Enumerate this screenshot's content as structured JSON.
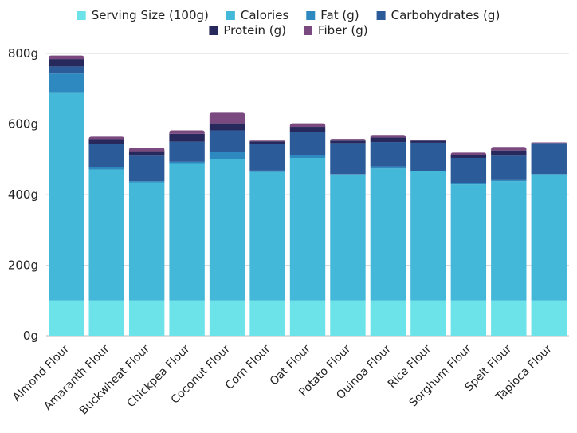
{
  "chart_data": {
    "type": "bar",
    "stacked": true,
    "categories": [
      "Almond Flour",
      "Amaranth Flour",
      "Buckwheat Flour",
      "Chickpea Flour",
      "Coconut Flour",
      "Corn Flour",
      "Oat Flour",
      "Potato Flour",
      "Quinoa Flour",
      "Rice Flour",
      "Sorghum Flour",
      "Spelt Flour",
      "Tapioca Flour"
    ],
    "series": [
      {
        "name": "Serving Size (100g)",
        "color": "#6be3e8",
        "values": [
          100,
          100,
          100,
          100,
          100,
          100,
          100,
          100,
          100,
          100,
          100,
          100,
          100
        ]
      },
      {
        "name": "Calories",
        "color": "#43b8d9",
        "values": [
          590,
          371,
          335,
          387,
          400,
          364,
          404,
          357,
          374,
          366,
          329,
          338,
          358
        ]
      },
      {
        "name": "Fat (g)",
        "color": "#2d89c0",
        "values": [
          53,
          7,
          3,
          6,
          22,
          4,
          7,
          1,
          6,
          1,
          3,
          3,
          0
        ]
      },
      {
        "name": "Carbohydrates (g)",
        "color": "#2b5b98",
        "values": [
          20,
          65,
          72,
          57,
          60,
          76,
          66,
          88,
          69,
          80,
          72,
          69,
          88
        ]
      },
      {
        "name": "Protein (g)",
        "color": "#27285c",
        "values": [
          21,
          14,
          13,
          22,
          20,
          7,
          15,
          7,
          13,
          6,
          9,
          15,
          0
        ]
      },
      {
        "name": "Fiber (g)",
        "color": "#79497f",
        "values": [
          10,
          7,
          10,
          10,
          30,
          2,
          10,
          5,
          7,
          2,
          6,
          10,
          2
        ]
      }
    ],
    "y_tick_labels": [
      "0g",
      "200g",
      "400g",
      "600g",
      "800g"
    ],
    "ylim": [
      0,
      800
    ],
    "grid": true,
    "legend_position": "top"
  }
}
